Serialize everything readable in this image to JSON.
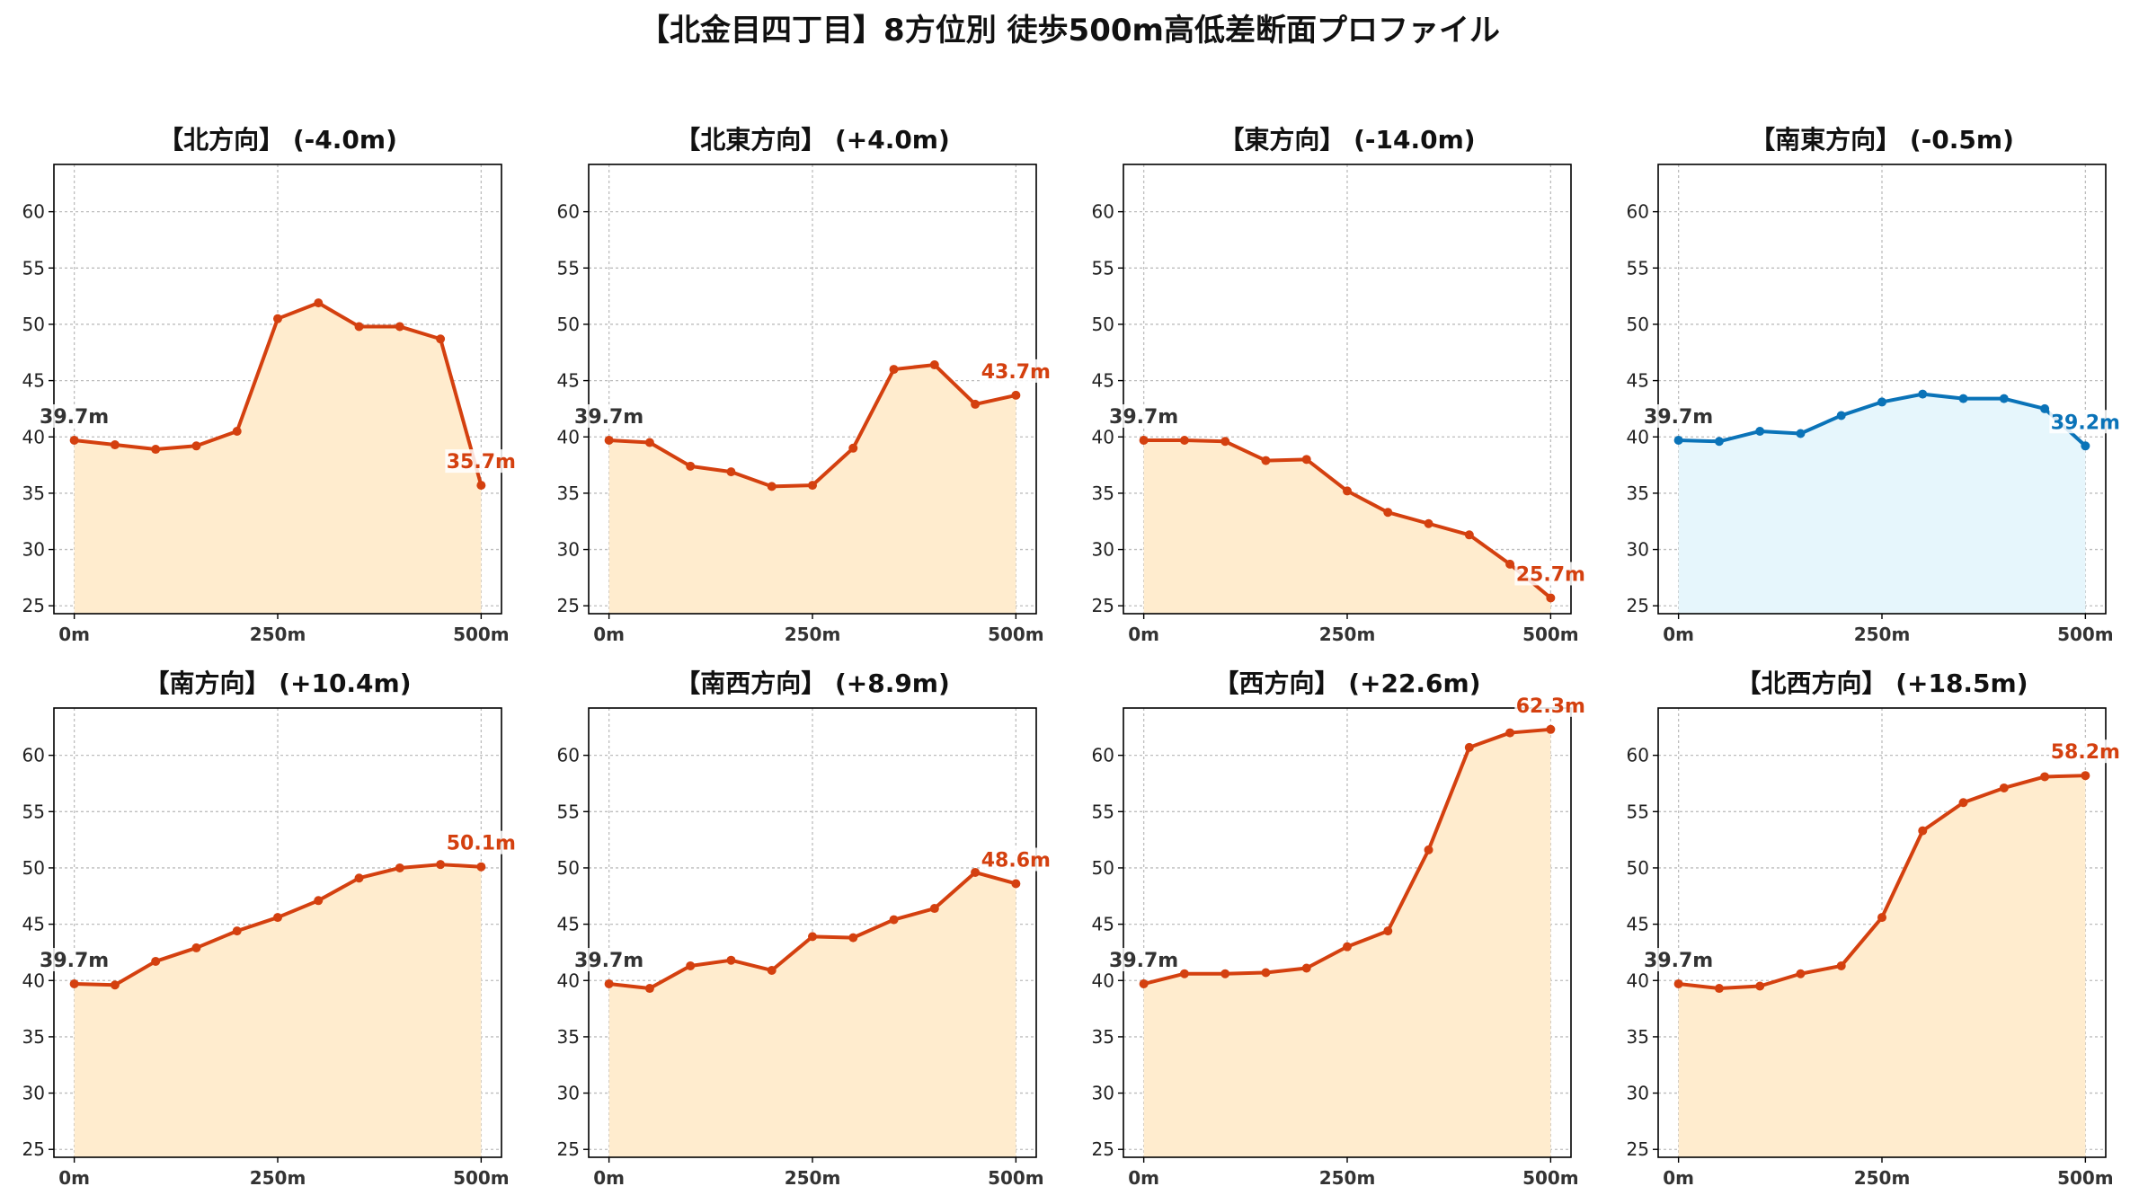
{
  "title": "【北金目四丁目】8方位別 徒歩500m高低差断面プロファイル",
  "colors": {
    "descent_line": "#d4400f",
    "descent_fill": "#ffecce",
    "flat_line": "#0a73b8",
    "flat_fill": "#e6f6fc",
    "start_label": "#333333"
  },
  "chart_data": [
    {
      "type": "line",
      "title": "【北方向】 (-4.0m)",
      "start_label": "39.7m",
      "end_label": "35.7m",
      "style": "descent",
      "x": [
        0,
        50,
        100,
        150,
        200,
        250,
        300,
        350,
        400,
        450,
        500
      ],
      "values": [
        39.7,
        39.3,
        38.9,
        39.2,
        40.5,
        50.5,
        51.9,
        49.8,
        49.8,
        48.7,
        35.7
      ],
      "xticks": [
        "0m",
        "250m",
        "500m"
      ],
      "yticks": [
        25,
        30,
        35,
        40,
        45,
        50,
        55,
        60
      ],
      "ylim": [
        24.3,
        64.2
      ],
      "grid": true
    },
    {
      "type": "line",
      "title": "【北東方向】 (+4.0m)",
      "start_label": "39.7m",
      "end_label": "43.7m",
      "style": "descent",
      "x": [
        0,
        50,
        100,
        150,
        200,
        250,
        300,
        350,
        400,
        450,
        500
      ],
      "values": [
        39.7,
        39.5,
        37.4,
        36.9,
        35.6,
        35.7,
        39.0,
        46.0,
        46.4,
        42.9,
        43.7
      ],
      "xticks": [
        "0m",
        "250m",
        "500m"
      ],
      "yticks": [
        25,
        30,
        35,
        40,
        45,
        50,
        55,
        60
      ],
      "ylim": [
        24.3,
        64.2
      ],
      "grid": true
    },
    {
      "type": "line",
      "title": "【東方向】 (-14.0m)",
      "start_label": "39.7m",
      "end_label": "25.7m",
      "style": "descent",
      "x": [
        0,
        50,
        100,
        150,
        200,
        250,
        300,
        350,
        400,
        450,
        500
      ],
      "values": [
        39.7,
        39.7,
        39.6,
        37.9,
        38.0,
        35.2,
        33.3,
        32.3,
        31.3,
        28.7,
        25.7
      ],
      "xticks": [
        "0m",
        "250m",
        "500m"
      ],
      "yticks": [
        25,
        30,
        35,
        40,
        45,
        50,
        55,
        60
      ],
      "ylim": [
        24.3,
        64.2
      ],
      "grid": true
    },
    {
      "type": "line",
      "title": "【南東方向】 (-0.5m)",
      "start_label": "39.7m",
      "end_label": "39.2m",
      "style": "flat",
      "x": [
        0,
        50,
        100,
        150,
        200,
        250,
        300,
        350,
        400,
        450,
        500
      ],
      "values": [
        39.7,
        39.6,
        40.5,
        40.3,
        41.9,
        43.1,
        43.8,
        43.4,
        43.4,
        42.5,
        39.2
      ],
      "xticks": [
        "0m",
        "250m",
        "500m"
      ],
      "yticks": [
        25,
        30,
        35,
        40,
        45,
        50,
        55,
        60
      ],
      "ylim": [
        24.3,
        64.2
      ],
      "grid": true
    },
    {
      "type": "line",
      "title": "【南方向】 (+10.4m)",
      "start_label": "39.7m",
      "end_label": "50.1m",
      "style": "descent",
      "x": [
        0,
        50,
        100,
        150,
        200,
        250,
        300,
        350,
        400,
        450,
        500
      ],
      "values": [
        39.7,
        39.6,
        41.7,
        42.9,
        44.4,
        45.6,
        47.1,
        49.1,
        50.0,
        50.3,
        50.1
      ],
      "xticks": [
        "0m",
        "250m",
        "500m"
      ],
      "yticks": [
        25,
        30,
        35,
        40,
        45,
        50,
        55,
        60
      ],
      "ylim": [
        24.3,
        64.2
      ],
      "grid": true
    },
    {
      "type": "line",
      "title": "【南西方向】 (+8.9m)",
      "start_label": "39.7m",
      "end_label": "48.6m",
      "style": "descent",
      "x": [
        0,
        50,
        100,
        150,
        200,
        250,
        300,
        350,
        400,
        450,
        500
      ],
      "values": [
        39.7,
        39.3,
        41.3,
        41.8,
        40.9,
        43.9,
        43.8,
        45.4,
        46.4,
        49.6,
        48.6
      ],
      "xticks": [
        "0m",
        "250m",
        "500m"
      ],
      "yticks": [
        25,
        30,
        35,
        40,
        45,
        50,
        55,
        60
      ],
      "ylim": [
        24.3,
        64.2
      ],
      "grid": true
    },
    {
      "type": "line",
      "title": "【西方向】 (+22.6m)",
      "start_label": "39.7m",
      "end_label": "62.3m",
      "style": "descent",
      "x": [
        0,
        50,
        100,
        150,
        200,
        250,
        300,
        350,
        400,
        450,
        500
      ],
      "values": [
        39.7,
        40.6,
        40.6,
        40.7,
        41.1,
        43.0,
        44.4,
        51.6,
        60.7,
        62.0,
        62.3
      ],
      "xticks": [
        "0m",
        "250m",
        "500m"
      ],
      "yticks": [
        25,
        30,
        35,
        40,
        45,
        50,
        55,
        60
      ],
      "ylim": [
        24.3,
        64.2
      ],
      "grid": true
    },
    {
      "type": "line",
      "title": "【北西方向】 (+18.5m)",
      "start_label": "39.7m",
      "end_label": "58.2m",
      "style": "descent",
      "x": [
        0,
        50,
        100,
        150,
        200,
        250,
        300,
        350,
        400,
        450,
        500
      ],
      "values": [
        39.7,
        39.3,
        39.5,
        40.6,
        41.3,
        45.6,
        53.3,
        55.8,
        57.1,
        58.1,
        58.2
      ],
      "xticks": [
        "0m",
        "250m",
        "500m"
      ],
      "yticks": [
        25,
        30,
        35,
        40,
        45,
        50,
        55,
        60
      ],
      "ylim": [
        24.3,
        64.2
      ],
      "grid": true
    }
  ]
}
